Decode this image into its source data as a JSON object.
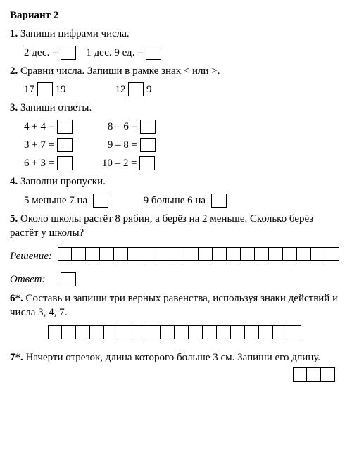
{
  "title": "Вариант 2",
  "t1": {
    "num": "1.",
    "text": "Запиши цифрами числа.",
    "a": "2 дес. =",
    "b": "1 дес. 9 ед. ="
  },
  "t2": {
    "num": "2.",
    "text": "Сравни числа. Запиши в рамке знак < или >.",
    "p1a": "17",
    "p1b": "19",
    "p2a": "12",
    "p2b": "9"
  },
  "t3": {
    "num": "3.",
    "text": "Запиши ответы.",
    "r1a": "4 + 4 =",
    "r1b": "8 – 6 =",
    "r2a": "3 + 7 =",
    "r2b": "9 – 8 =",
    "r3a": "6 + 3 =",
    "r3b": "10 – 2 ="
  },
  "t4": {
    "num": "4.",
    "text": "Заполни пропуски.",
    "a": "5 меньше 7 на",
    "b": "9 больше 6 на"
  },
  "t5": {
    "num": "5.",
    "text": "Около школы растёт 8 рябин, а берёз на 2 меньше. Сколько берёз растёт у школы?",
    "sol": "Решение",
    "ans": "Ответ",
    "cells": 20
  },
  "t6": {
    "num": "6*.",
    "text": "Составь и запиши три верных равенства, используя знаки действий и числа 3, 4, 7.",
    "cells": 18
  },
  "t7": {
    "num": "7*.",
    "text": "Начерти отрезок, длина которого больше 3 см. Запиши его длину.",
    "cells": 3
  }
}
